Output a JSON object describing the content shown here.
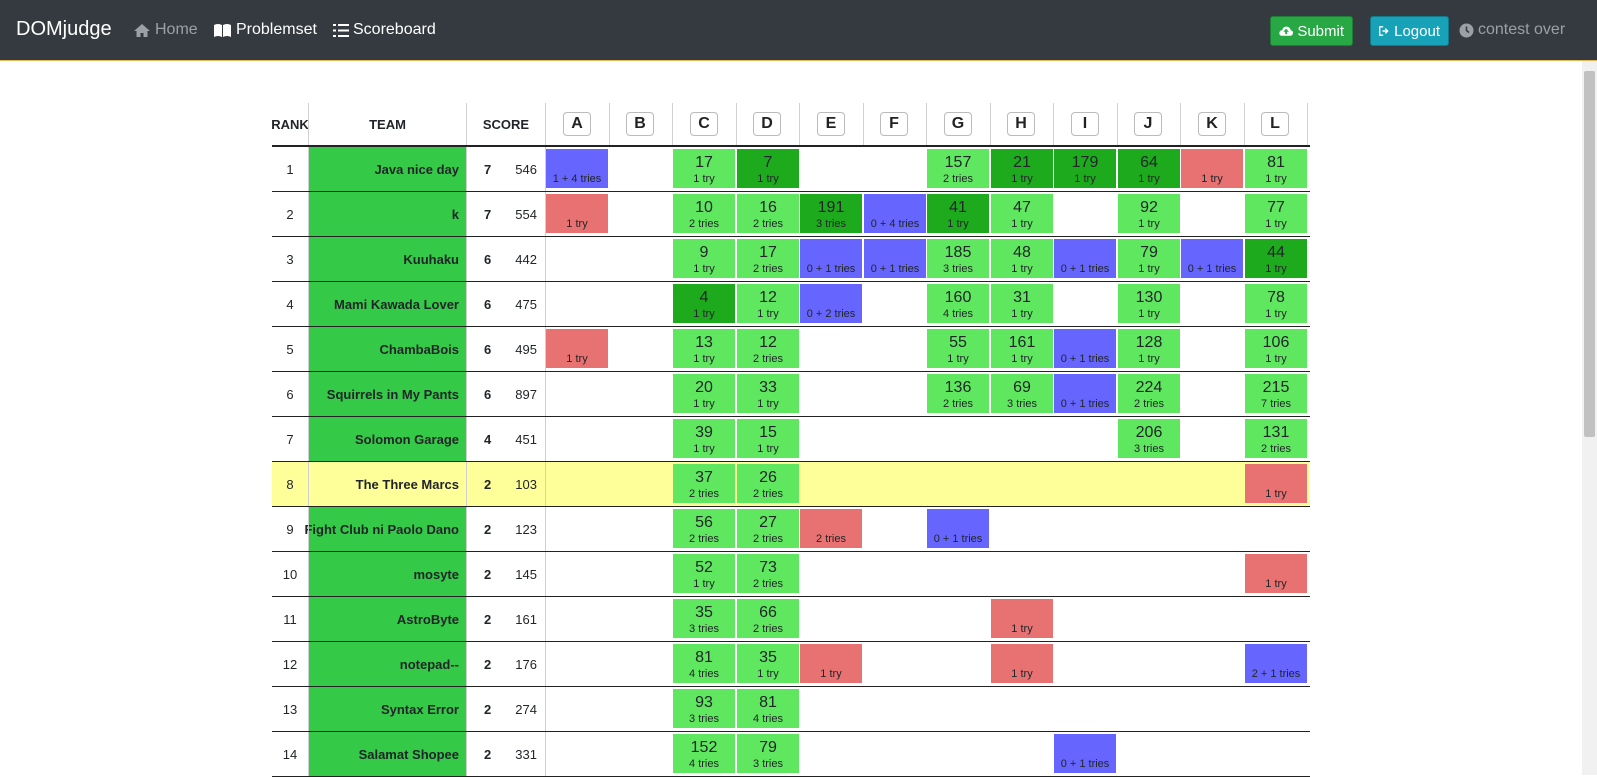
{
  "nav": {
    "brand": "DOMjudge",
    "home": "Home",
    "problemset": "Problemset",
    "scoreboard": "Scoreboard",
    "submit": "Submit",
    "logout": "Logout",
    "contest_status": "contest over"
  },
  "header": {
    "rank": "RANK",
    "team": "TEAM",
    "score": "SCORE"
  },
  "problems": [
    "A",
    "B",
    "C",
    "D",
    "E",
    "F",
    "G",
    "H",
    "I",
    "J",
    "K",
    "L"
  ],
  "colors": {
    "correct": "#60e760",
    "first_to_solve": "#1daa1d",
    "incorrect": "#e87272",
    "pending": "#6666ff",
    "team_bg": "#35c948",
    "highlight": "#ffff99"
  },
  "rows": [
    {
      "rank": "1",
      "team": "Java nice day",
      "solved": "7",
      "penalty": "546",
      "cells": [
        {
          "s": "pending",
          "tries": "1 + 4 tries"
        },
        null,
        {
          "s": "correct",
          "time": "17",
          "tries": "1 try"
        },
        {
          "s": "first",
          "time": "7",
          "tries": "1 try"
        },
        null,
        null,
        {
          "s": "correct",
          "time": "157",
          "tries": "2 tries"
        },
        {
          "s": "first",
          "time": "21",
          "tries": "1 try"
        },
        {
          "s": "first",
          "time": "179",
          "tries": "1 try"
        },
        {
          "s": "first",
          "time": "64",
          "tries": "1 try"
        },
        {
          "s": "incorrect",
          "tries": "1 try"
        },
        {
          "s": "correct",
          "time": "81",
          "tries": "1 try"
        }
      ]
    },
    {
      "rank": "2",
      "team": "k",
      "solved": "7",
      "penalty": "554",
      "cells": [
        {
          "s": "incorrect",
          "tries": "1 try"
        },
        null,
        {
          "s": "correct",
          "time": "10",
          "tries": "2 tries"
        },
        {
          "s": "correct",
          "time": "16",
          "tries": "2 tries"
        },
        {
          "s": "first",
          "time": "191",
          "tries": "3 tries"
        },
        {
          "s": "pending",
          "tries": "0 + 4 tries"
        },
        {
          "s": "first",
          "time": "41",
          "tries": "1 try"
        },
        {
          "s": "correct",
          "time": "47",
          "tries": "1 try"
        },
        null,
        {
          "s": "correct",
          "time": "92",
          "tries": "1 try"
        },
        null,
        {
          "s": "correct",
          "time": "77",
          "tries": "1 try"
        }
      ]
    },
    {
      "rank": "3",
      "team": "Kuuhaku",
      "solved": "6",
      "penalty": "442",
      "cells": [
        null,
        null,
        {
          "s": "correct",
          "time": "9",
          "tries": "1 try"
        },
        {
          "s": "correct",
          "time": "17",
          "tries": "2 tries"
        },
        {
          "s": "pending",
          "tries": "0 + 1 tries"
        },
        {
          "s": "pending",
          "tries": "0 + 1 tries"
        },
        {
          "s": "correct",
          "time": "185",
          "tries": "3 tries"
        },
        {
          "s": "correct",
          "time": "48",
          "tries": "1 try"
        },
        {
          "s": "pending",
          "tries": "0 + 1 tries"
        },
        {
          "s": "correct",
          "time": "79",
          "tries": "1 try"
        },
        {
          "s": "pending",
          "tries": "0 + 1 tries"
        },
        {
          "s": "first",
          "time": "44",
          "tries": "1 try"
        }
      ]
    },
    {
      "rank": "4",
      "team": "Mami Kawada Lover",
      "solved": "6",
      "penalty": "475",
      "cells": [
        null,
        null,
        {
          "s": "first",
          "time": "4",
          "tries": "1 try"
        },
        {
          "s": "correct",
          "time": "12",
          "tries": "1 try"
        },
        {
          "s": "pending",
          "tries": "0 + 2 tries"
        },
        null,
        {
          "s": "correct",
          "time": "160",
          "tries": "4 tries"
        },
        {
          "s": "correct",
          "time": "31",
          "tries": "1 try"
        },
        null,
        {
          "s": "correct",
          "time": "130",
          "tries": "1 try"
        },
        null,
        {
          "s": "correct",
          "time": "78",
          "tries": "1 try"
        }
      ]
    },
    {
      "rank": "5",
      "team": "ChambaBois",
      "solved": "6",
      "penalty": "495",
      "cells": [
        {
          "s": "incorrect",
          "tries": "1 try"
        },
        null,
        {
          "s": "correct",
          "time": "13",
          "tries": "1 try"
        },
        {
          "s": "correct",
          "time": "12",
          "tries": "2 tries"
        },
        null,
        null,
        {
          "s": "correct",
          "time": "55",
          "tries": "1 try"
        },
        {
          "s": "correct",
          "time": "161",
          "tries": "1 try"
        },
        {
          "s": "pending",
          "tries": "0 + 1 tries"
        },
        {
          "s": "correct",
          "time": "128",
          "tries": "1 try"
        },
        null,
        {
          "s": "correct",
          "time": "106",
          "tries": "1 try"
        }
      ]
    },
    {
      "rank": "6",
      "team": "Squirrels in My Pants",
      "solved": "6",
      "penalty": "897",
      "cells": [
        null,
        null,
        {
          "s": "correct",
          "time": "20",
          "tries": "1 try"
        },
        {
          "s": "correct",
          "time": "33",
          "tries": "1 try"
        },
        null,
        null,
        {
          "s": "correct",
          "time": "136",
          "tries": "2 tries"
        },
        {
          "s": "correct",
          "time": "69",
          "tries": "3 tries"
        },
        {
          "s": "pending",
          "tries": "0 + 1 tries"
        },
        {
          "s": "correct",
          "time": "224",
          "tries": "2 tries"
        },
        null,
        {
          "s": "correct",
          "time": "215",
          "tries": "7 tries"
        }
      ]
    },
    {
      "rank": "7",
      "team": "Solomon Garage",
      "solved": "4",
      "penalty": "451",
      "cells": [
        null,
        null,
        {
          "s": "correct",
          "time": "39",
          "tries": "1 try"
        },
        {
          "s": "correct",
          "time": "15",
          "tries": "1 try"
        },
        null,
        null,
        null,
        null,
        null,
        {
          "s": "correct",
          "time": "206",
          "tries": "3 tries"
        },
        null,
        {
          "s": "correct",
          "time": "131",
          "tries": "2 tries"
        }
      ]
    },
    {
      "rank": "8",
      "team": "The Three Marcs",
      "solved": "2",
      "penalty": "103",
      "highlight": true,
      "cells": [
        null,
        null,
        {
          "s": "correct",
          "time": "37",
          "tries": "2 tries"
        },
        {
          "s": "correct",
          "time": "26",
          "tries": "2 tries"
        },
        null,
        null,
        null,
        null,
        null,
        null,
        null,
        {
          "s": "incorrect",
          "tries": "1 try"
        }
      ]
    },
    {
      "rank": "9",
      "team": "Fight Club ni Paolo Dano",
      "solved": "2",
      "penalty": "123",
      "cells": [
        null,
        null,
        {
          "s": "correct",
          "time": "56",
          "tries": "2 tries"
        },
        {
          "s": "correct",
          "time": "27",
          "tries": "2 tries"
        },
        {
          "s": "incorrect",
          "tries": "2 tries"
        },
        null,
        {
          "s": "pending",
          "tries": "0 + 1 tries"
        },
        null,
        null,
        null,
        null,
        null
      ]
    },
    {
      "rank": "10",
      "team": "mosyte",
      "solved": "2",
      "penalty": "145",
      "cells": [
        null,
        null,
        {
          "s": "correct",
          "time": "52",
          "tries": "1 try"
        },
        {
          "s": "correct",
          "time": "73",
          "tries": "2 tries"
        },
        null,
        null,
        null,
        null,
        null,
        null,
        null,
        {
          "s": "incorrect",
          "tries": "1 try"
        }
      ]
    },
    {
      "rank": "11",
      "team": "AstroByte",
      "solved": "2",
      "penalty": "161",
      "cells": [
        null,
        null,
        {
          "s": "correct",
          "time": "35",
          "tries": "3 tries"
        },
        {
          "s": "correct",
          "time": "66",
          "tries": "2 tries"
        },
        null,
        null,
        null,
        {
          "s": "incorrect",
          "tries": "1 try"
        },
        null,
        null,
        null,
        null
      ]
    },
    {
      "rank": "12",
      "team": "notepad--",
      "solved": "2",
      "penalty": "176",
      "cells": [
        null,
        null,
        {
          "s": "correct",
          "time": "81",
          "tries": "4 tries"
        },
        {
          "s": "correct",
          "time": "35",
          "tries": "1 try"
        },
        {
          "s": "incorrect",
          "tries": "1 try"
        },
        null,
        null,
        {
          "s": "incorrect",
          "tries": "1 try"
        },
        null,
        null,
        null,
        {
          "s": "pending",
          "tries": "2 + 1 tries"
        }
      ]
    },
    {
      "rank": "13",
      "team": "Syntax Error",
      "solved": "2",
      "penalty": "274",
      "cells": [
        null,
        null,
        {
          "s": "correct",
          "time": "93",
          "tries": "3 tries"
        },
        {
          "s": "correct",
          "time": "81",
          "tries": "4 tries"
        },
        null,
        null,
        null,
        null,
        null,
        null,
        null,
        null
      ]
    },
    {
      "rank": "14",
      "team": "Salamat Shopee",
      "solved": "2",
      "penalty": "331",
      "cells": [
        null,
        null,
        {
          "s": "correct",
          "time": "152",
          "tries": "4 tries"
        },
        {
          "s": "correct",
          "time": "79",
          "tries": "3 tries"
        },
        null,
        null,
        null,
        null,
        {
          "s": "pending",
          "tries": "0 + 1 tries"
        },
        null,
        null,
        null
      ]
    }
  ]
}
